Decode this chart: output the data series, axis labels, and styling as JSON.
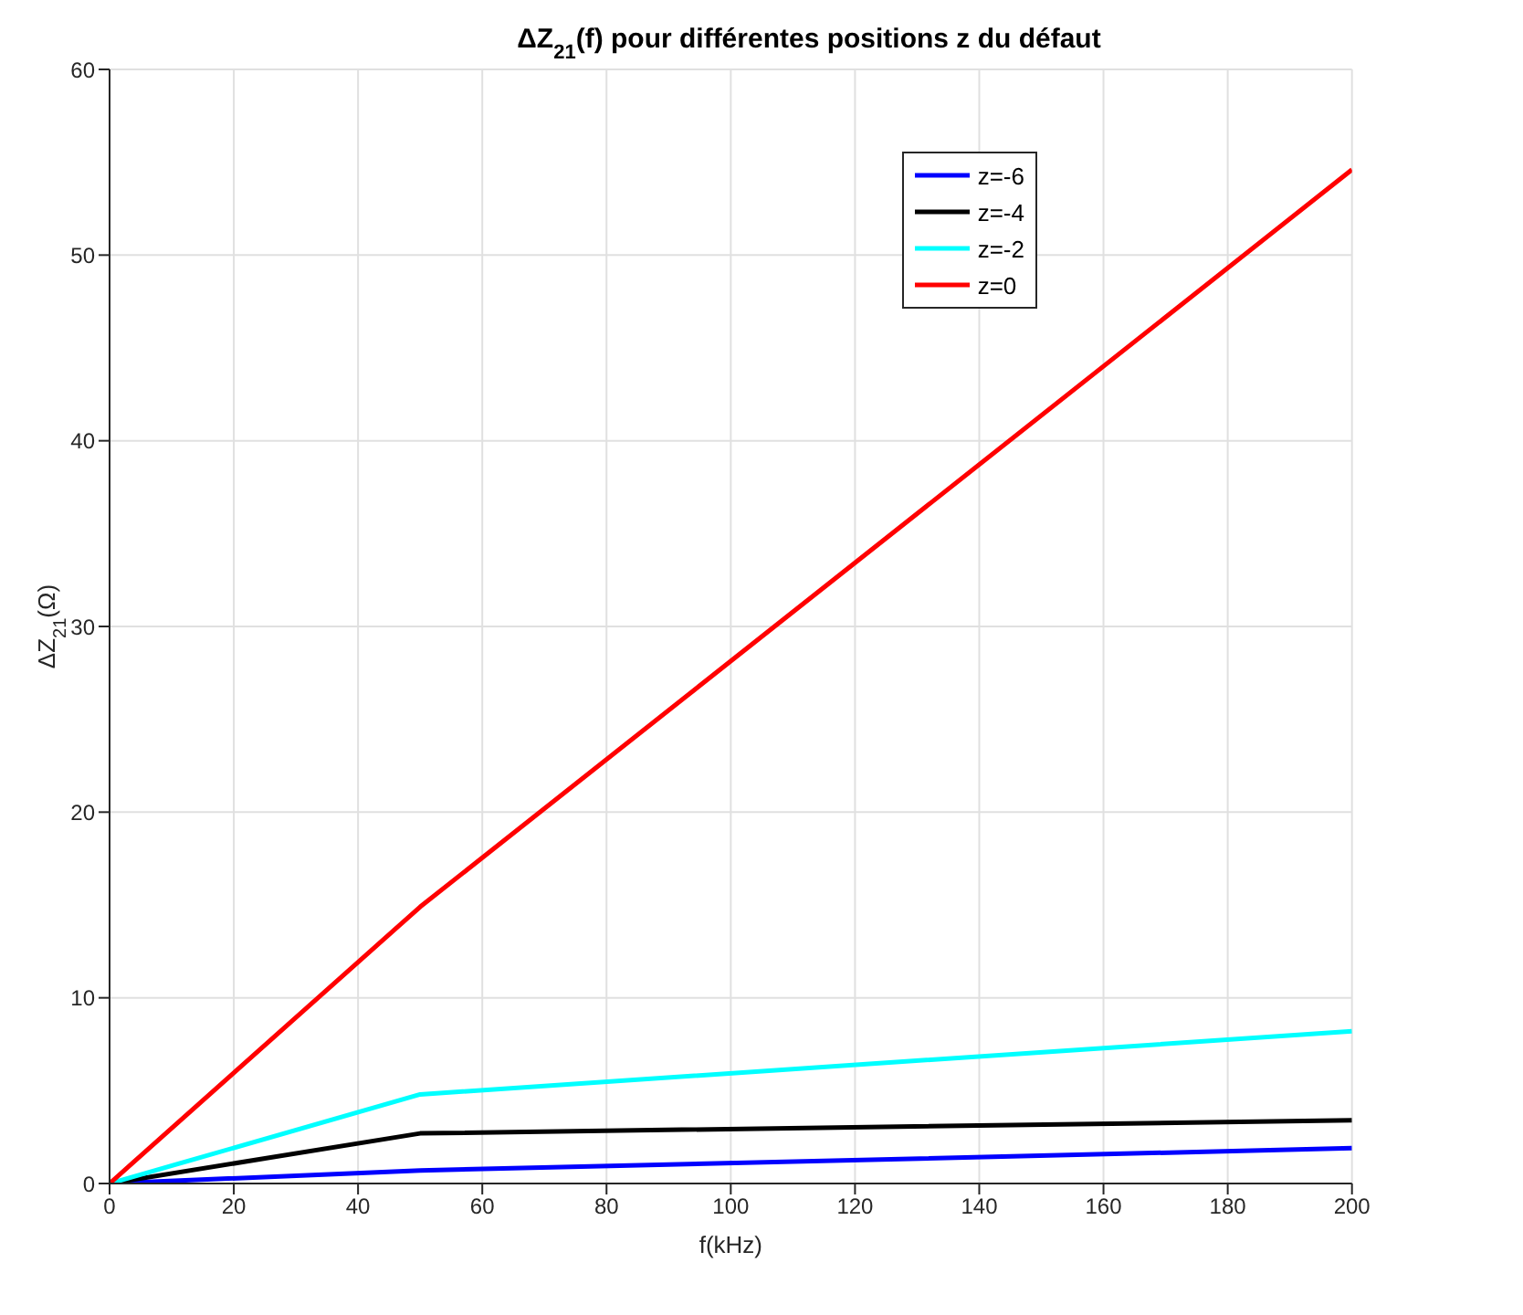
{
  "chart_data": {
    "type": "line",
    "title": "ΔZ$_{21}$(f) pour différentes positions z du défaut",
    "xlabel": "f(kHz)",
    "ylabel": "ΔZ$_{21}$(Ω)",
    "x": [
      0,
      50,
      200
    ],
    "series": [
      {
        "name": "z=-6",
        "color": "#0000ff",
        "values": [
          0,
          0.7,
          1.9
        ]
      },
      {
        "name": "z=-4",
        "color": "#000000",
        "values": [
          0,
          2.7,
          3.4
        ]
      },
      {
        "name": "z=-2",
        "color": "#00ffff",
        "values": [
          0,
          4.8,
          8.2
        ]
      },
      {
        "name": "z=0",
        "color": "#ff0000",
        "values": [
          0,
          14.9,
          54.6
        ]
      }
    ],
    "xlim": [
      0,
      200
    ],
    "xticks": [
      0,
      20,
      40,
      60,
      80,
      100,
      120,
      140,
      160,
      180,
      200
    ],
    "ylim": [
      0,
      60
    ],
    "yticks": [
      0,
      10,
      20,
      30,
      40,
      50,
      60
    ],
    "grid": true,
    "legend": "top right",
    "marker": "none",
    "line_style": "solid"
  }
}
